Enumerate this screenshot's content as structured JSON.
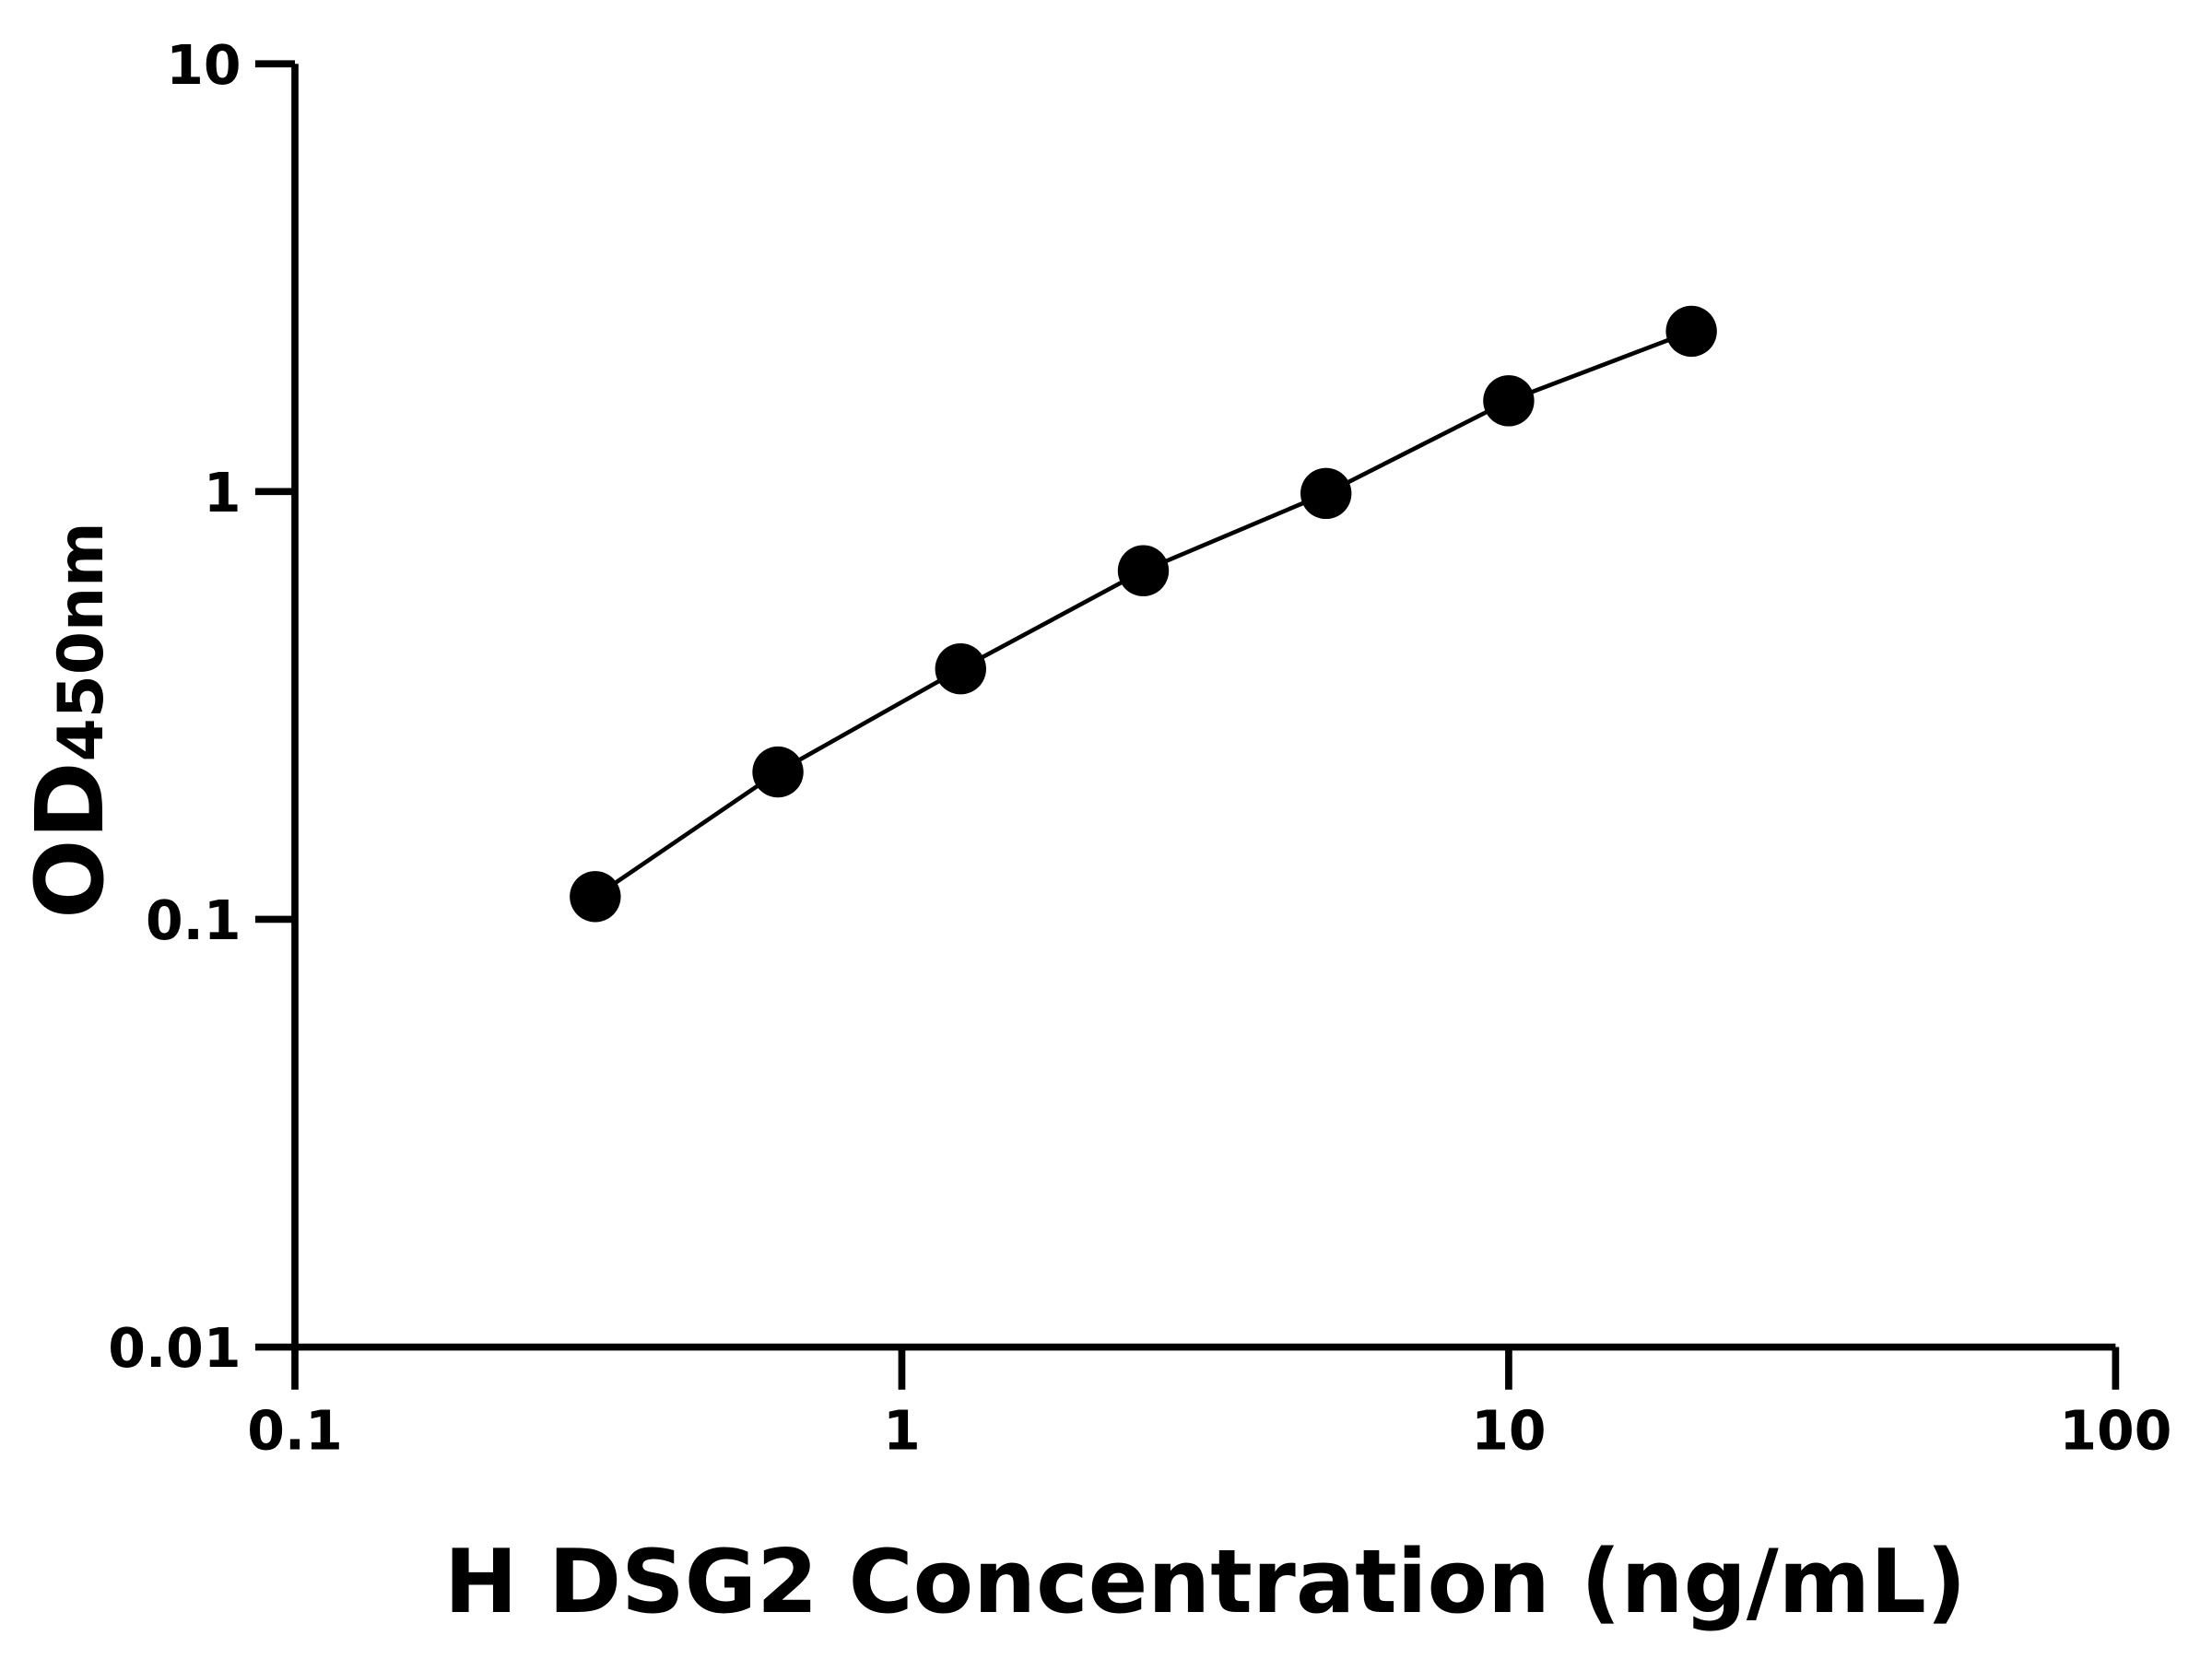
{
  "chart_data": {
    "type": "line",
    "title": "",
    "xlabel": "H DSG2 Concentration (ng/mL)",
    "ylabel_main": "OD",
    "ylabel_sub": "450nm",
    "x_scale": "log",
    "y_scale": "log",
    "xlim": [
      0.1,
      100
    ],
    "ylim": [
      0.01,
      10
    ],
    "x_ticks": [
      "0.1",
      "1",
      "10",
      "100"
    ],
    "y_ticks": [
      "0.01",
      "0.1",
      "1",
      "10"
    ],
    "grid": false,
    "series": [
      {
        "x": [
          0.3125,
          0.625,
          1.25,
          2.5,
          5,
          10,
          20
        ],
        "y": [
          0.113,
          0.221,
          0.385,
          0.653,
          0.99,
          1.63,
          2.37
        ],
        "marker": "circle",
        "color": "#000000"
      }
    ]
  }
}
